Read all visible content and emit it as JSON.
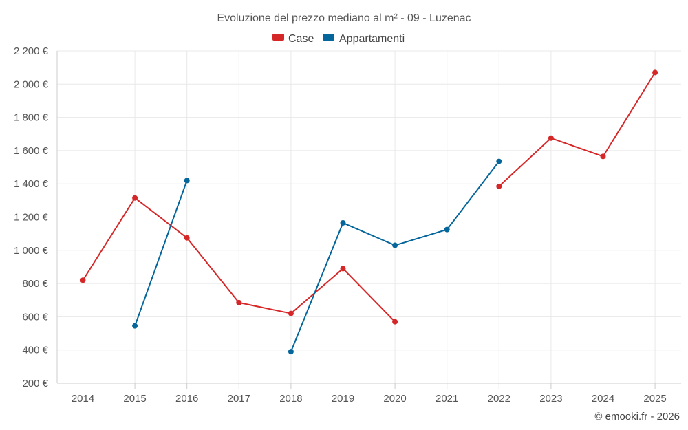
{
  "chart_data": {
    "type": "line",
    "title": "Evoluzione del prezzo mediano al m² - 09 - Luzenac",
    "categories": [
      "2014",
      "2015",
      "2016",
      "2017",
      "2018",
      "2019",
      "2020",
      "2021",
      "2022",
      "2023",
      "2024",
      "2025"
    ],
    "ylim": [
      200,
      2200
    ],
    "yticks": [
      200,
      400,
      600,
      800,
      1000,
      1200,
      1400,
      1600,
      1800,
      2000,
      2200
    ],
    "ytick_labels": [
      "200 €",
      "400 €",
      "600 €",
      "800 €",
      "1 000 €",
      "1 200 €",
      "1 400 €",
      "1 600 €",
      "1 800 €",
      "2 000 €",
      "2 200 €"
    ],
    "grid": true,
    "legend_position": "top-center",
    "series": [
      {
        "name": "Case",
        "color": "#d62728",
        "values": [
          820,
          1315,
          1075,
          685,
          620,
          890,
          570,
          null,
          1385,
          1675,
          1565,
          2070
        ]
      },
      {
        "name": "Appartamenti",
        "color": "#04669a",
        "values": [
          null,
          545,
          1420,
          null,
          390,
          1165,
          1030,
          1125,
          1535,
          null,
          null,
          null
        ]
      }
    ],
    "credit": "© emooki.fr - 2026"
  }
}
